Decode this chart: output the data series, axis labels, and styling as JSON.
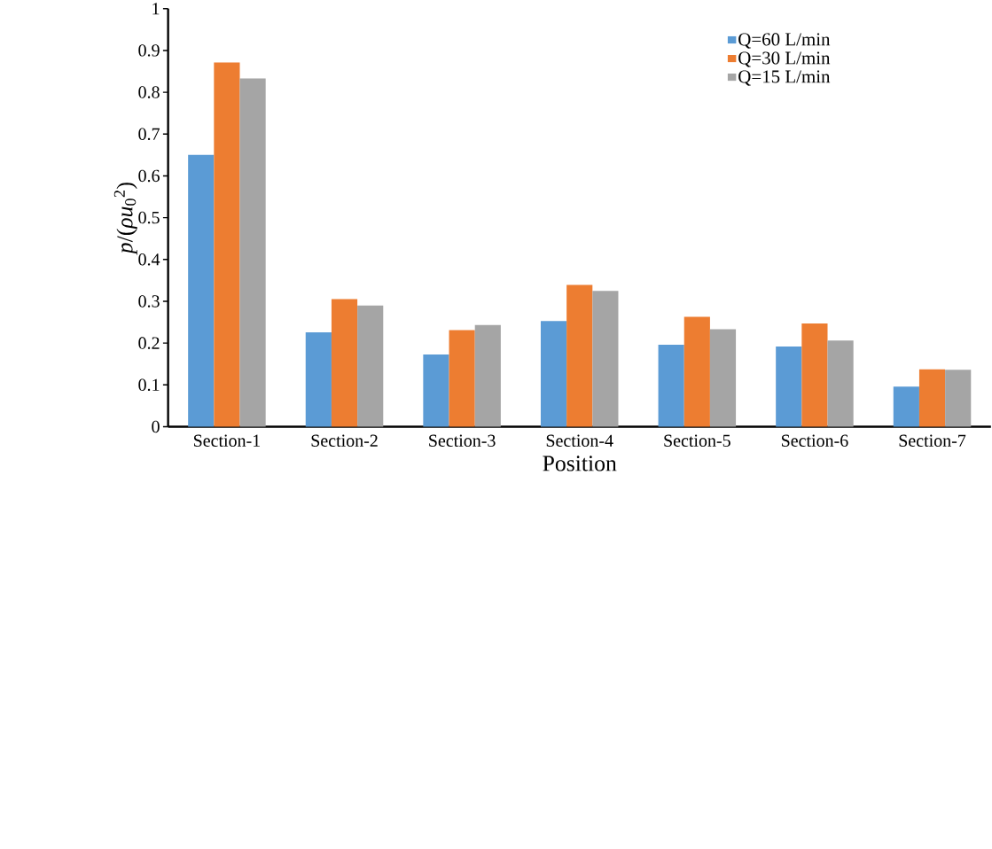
{
  "chart_data": {
    "type": "bar",
    "xlabel": "Position",
    "ylabel": "*p*/(*ρu*$_{0}$$^{2}$)",
    "categories": [
      "Section-1",
      "Section-2",
      "Section-3",
      "Section-4",
      "Section-5",
      "Section-6",
      "Section-7"
    ],
    "series": [
      {
        "name": "Q=60 L/min",
        "color": "#5b9bd5",
        "values": [
          0.65,
          0.226,
          0.173,
          0.253,
          0.196,
          0.192,
          0.096
        ]
      },
      {
        "name": "Q=30 L/min",
        "color": "#ed7d31",
        "values": [
          0.871,
          0.305,
          0.231,
          0.339,
          0.263,
          0.247,
          0.137
        ]
      },
      {
        "name": "Q=15 L/min",
        "color": "#a5a5a5",
        "values": [
          0.833,
          0.29,
          0.243,
          0.325,
          0.233,
          0.206,
          0.136
        ]
      }
    ],
    "ylim": [
      0,
      1
    ],
    "yticks": [
      0,
      0.1,
      0.2,
      0.3,
      0.4,
      0.5,
      0.6,
      0.7,
      0.8,
      0.9,
      1
    ],
    "legend": "top right"
  }
}
